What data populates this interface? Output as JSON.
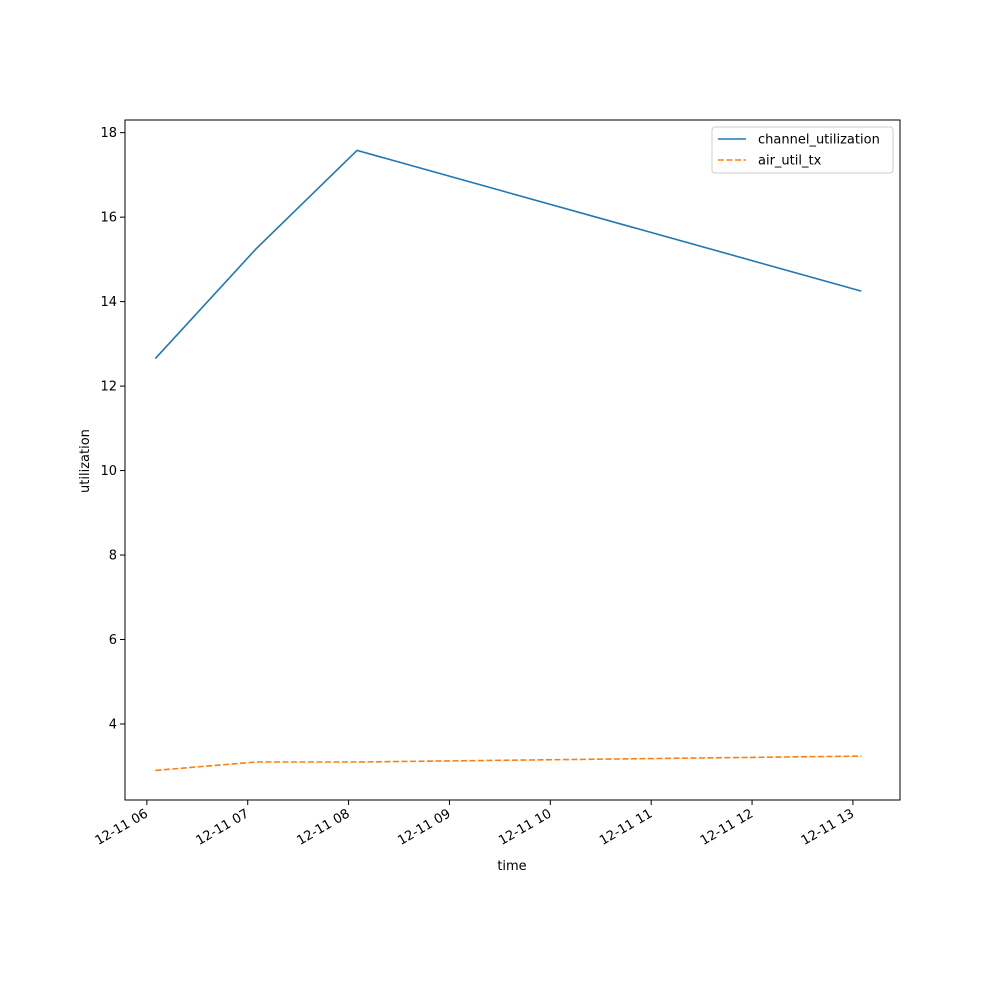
{
  "chart_data": {
    "type": "line",
    "xlabel": "time",
    "ylabel": "utilization",
    "x": [
      "12-11 06:05",
      "12-11 07:05",
      "12-11 08:05",
      "12-11 13:05"
    ],
    "x_range": [
      "12-11 05:47",
      "12-11 13:28"
    ],
    "ylim": [
      2.2,
      18.3
    ],
    "x_ticks": [
      "12-11 06",
      "12-11 07",
      "12-11 08",
      "12-11 09",
      "12-11 10",
      "12-11 11",
      "12-11 12",
      "12-11 13"
    ],
    "y_ticks": [
      4,
      6,
      8,
      10,
      12,
      14,
      16,
      18
    ],
    "grid": false,
    "legend_position": "top-right",
    "series": [
      {
        "name": "channel_utilization",
        "values": [
          12.65,
          15.25,
          17.58,
          14.25
        ],
        "color": "#1f77b4",
        "style": "solid"
      },
      {
        "name": "air_util_tx",
        "values": [
          2.9,
          3.1,
          3.1,
          3.24
        ],
        "color": "#ff7f0e",
        "style": "dashed"
      }
    ]
  }
}
